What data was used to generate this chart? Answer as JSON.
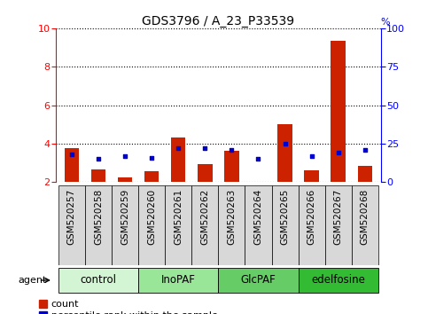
{
  "title": "GDS3796 / A_23_P33539",
  "samples": [
    "GSM520257",
    "GSM520258",
    "GSM520259",
    "GSM520260",
    "GSM520261",
    "GSM520262",
    "GSM520263",
    "GSM520264",
    "GSM520265",
    "GSM520266",
    "GSM520267",
    "GSM520268"
  ],
  "count_values": [
    3.75,
    2.65,
    2.25,
    2.55,
    4.3,
    2.95,
    3.65,
    2.0,
    5.0,
    2.6,
    9.35,
    2.85
  ],
  "percentile_values": [
    18,
    15,
    17,
    16,
    22,
    22,
    21,
    15,
    25,
    17,
    19,
    21
  ],
  "groups": [
    {
      "label": "control",
      "start": 0,
      "end": 3,
      "color": "#d4f5d4"
    },
    {
      "label": "InoPAF",
      "start": 3,
      "end": 6,
      "color": "#99e699"
    },
    {
      "label": "GlcPAF",
      "start": 6,
      "end": 9,
      "color": "#66cc66"
    },
    {
      "label": "edelfosine",
      "start": 9,
      "end": 12,
      "color": "#33bb33"
    }
  ],
  "ylim_left": [
    2,
    10
  ],
  "ylim_right": [
    0,
    100
  ],
  "yticks_left": [
    2,
    4,
    6,
    8,
    10
  ],
  "yticks_right": [
    0,
    25,
    50,
    75,
    100
  ],
  "bar_color_red": "#cc2200",
  "bar_color_blue": "#0000cc",
  "bar_width": 0.55,
  "grid_color": "black",
  "bg_plot": "#ffffff",
  "bg_figure": "#ffffff",
  "title_fontsize": 10,
  "tick_fontsize": 8,
  "label_fontsize": 7.5,
  "legend_fontsize": 8
}
